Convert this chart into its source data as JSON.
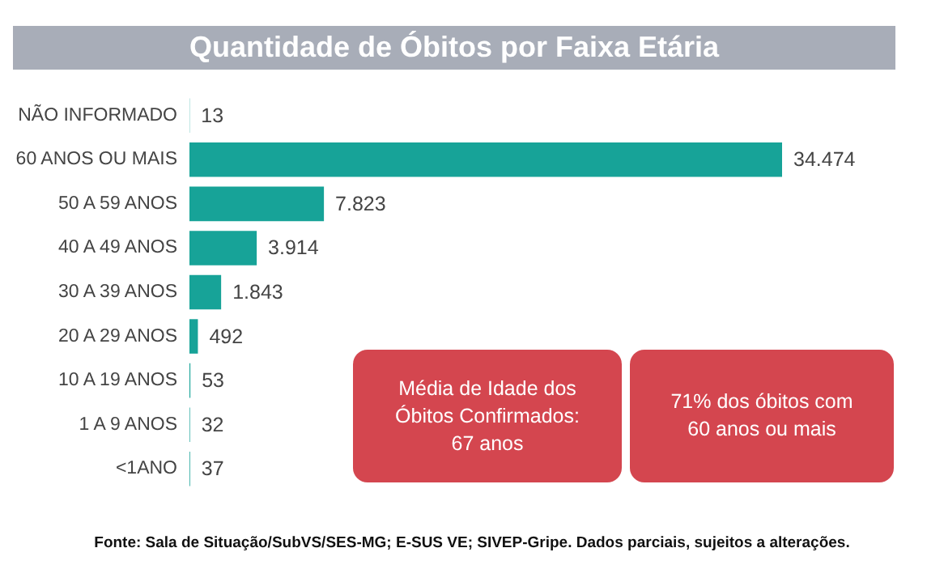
{
  "chart_data": {
    "type": "bar",
    "orientation": "horizontal",
    "title": "Quantidade de Óbitos por Faixa Etária",
    "categories": [
      "NÃO INFORMADO",
      "60 ANOS OU MAIS",
      "50 A 59 ANOS",
      "40 A 49 ANOS",
      "30 A 39 ANOS",
      "20 A 29 ANOS",
      "10 A 19 ANOS",
      "1 A 9 ANOS",
      "<1ANO"
    ],
    "values": [
      13,
      34474,
      7823,
      3914,
      1843,
      492,
      53,
      32,
      37
    ],
    "value_labels": [
      "13",
      "34.474",
      "7.823",
      "3.914",
      "1.843",
      "492",
      "53",
      "32",
      "37"
    ],
    "color": "#17a398",
    "tick_labels": "y",
    "annotations": [
      "Média de Idade dos\nÓbitos Confirmados:\n67 anos",
      "71% dos óbitos com\n60 anos ou mais",
      "Fonte: Sala de Situação/SubVS/SES-MG; E-SUS VE; SIVEP-Gripe. Dados parciais, sujeitos a alterações."
    ]
  }
}
